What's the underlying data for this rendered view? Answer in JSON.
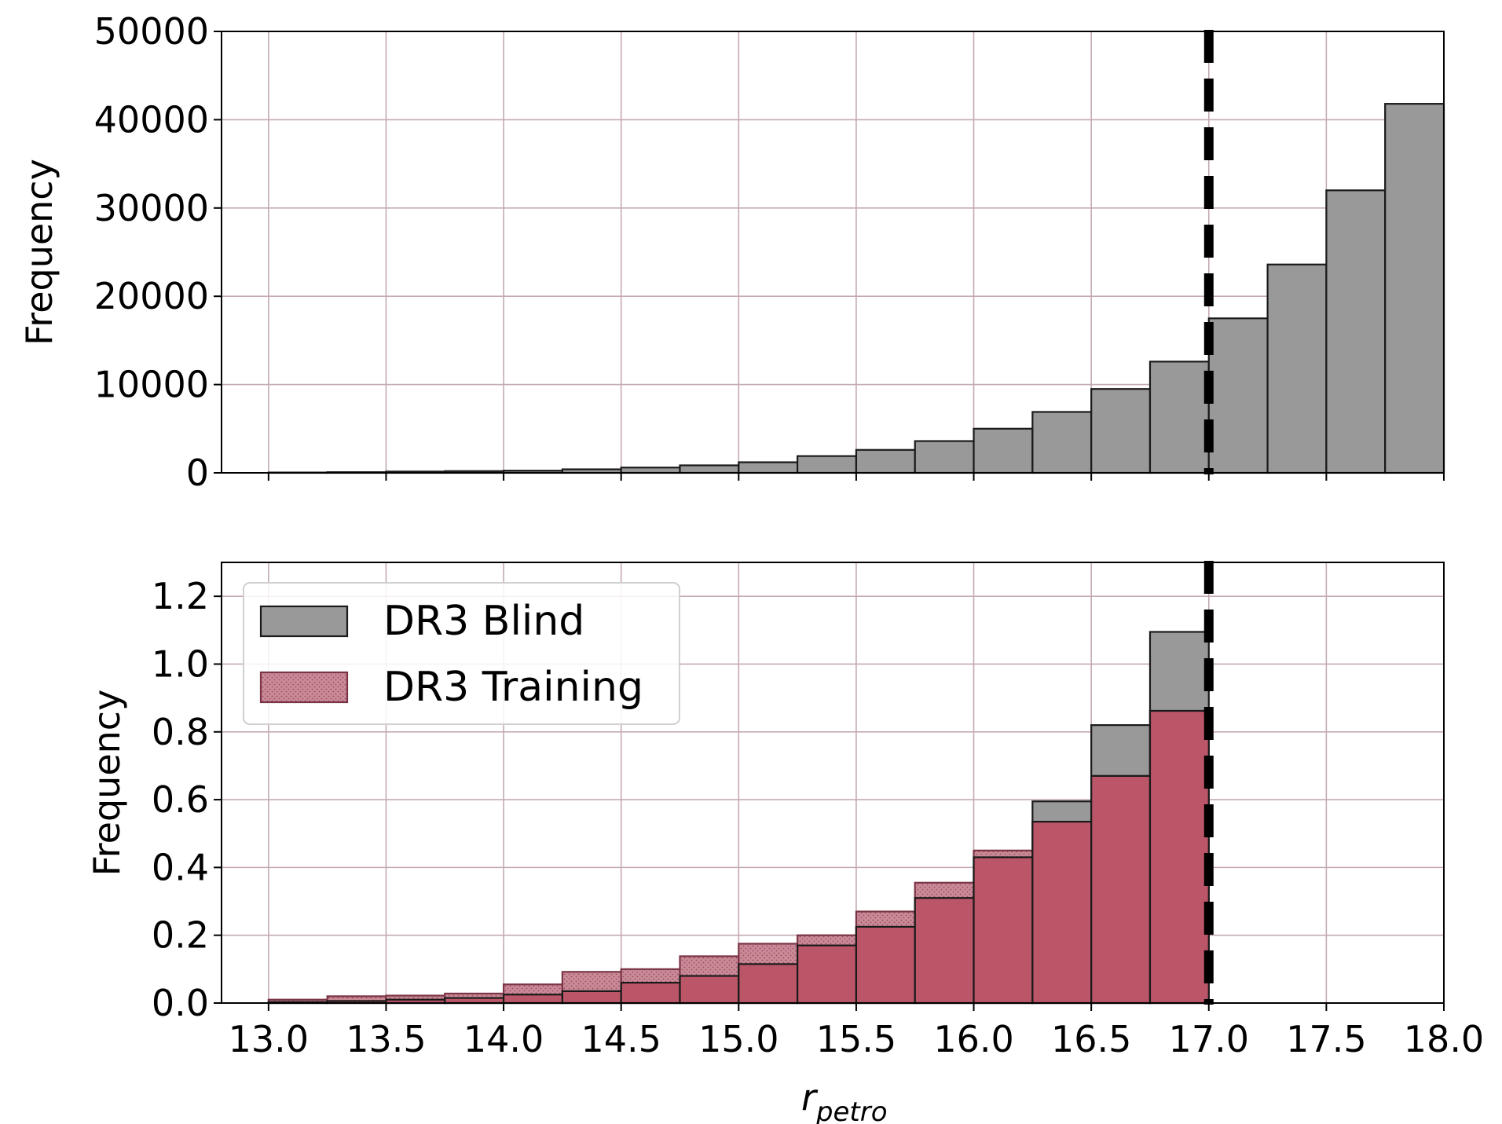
{
  "chart_data": [
    {
      "type": "bar",
      "panel": "top",
      "xlabel": "",
      "ylabel": "Frequency",
      "xlim": [
        12.8,
        18.0
      ],
      "ylim": [
        0,
        50000
      ],
      "xticks": [
        "13.0",
        "13.5",
        "14.0",
        "14.5",
        "15.0",
        "15.5",
        "16.0",
        "16.5",
        "17.0",
        "17.5",
        "18.0"
      ],
      "yticks": [
        "0",
        "10000",
        "20000",
        "30000",
        "40000",
        "50000"
      ],
      "show_x_tick_labels": false,
      "grid": true,
      "cut_line_x": 17.0,
      "bin_edges": [
        13.0,
        13.25,
        13.5,
        13.75,
        14.0,
        14.25,
        14.5,
        14.75,
        15.0,
        15.25,
        15.5,
        15.75,
        16.0,
        16.25,
        16.5,
        16.75,
        17.0,
        17.25,
        17.5,
        17.75,
        18.0
      ],
      "series": [
        {
          "name": "DR3 Blind",
          "color": "#999999",
          "values": [
            40,
            80,
            150,
            200,
            250,
            400,
            600,
            850,
            1200,
            1900,
            2600,
            3600,
            5000,
            6900,
            9500,
            12600,
            17500,
            23600,
            32000,
            41800
          ]
        }
      ]
    },
    {
      "type": "bar",
      "panel": "bottom",
      "xlabel": "r",
      "xlabel_subscript": "petro",
      "ylabel": "Frequency",
      "xlim": [
        12.8,
        18.0
      ],
      "ylim": [
        0,
        1.3
      ],
      "xticks": [
        "13.0",
        "13.5",
        "14.0",
        "14.5",
        "15.0",
        "15.5",
        "16.0",
        "16.5",
        "17.0",
        "17.5",
        "18.0"
      ],
      "yticks": [
        "0.0",
        "0.2",
        "0.4",
        "0.6",
        "0.8",
        "1.0",
        "1.2"
      ],
      "show_x_tick_labels": true,
      "grid": true,
      "cut_line_x": 17.0,
      "legend_position": "top-left",
      "bin_edges": [
        13.0,
        13.25,
        13.5,
        13.75,
        14.0,
        14.25,
        14.5,
        14.75,
        15.0,
        15.25,
        15.5,
        15.75,
        16.0,
        16.25,
        16.5,
        16.75,
        17.0
      ],
      "series": [
        {
          "name": "DR3 Blind",
          "color": "#999999",
          "values": [
            0.003,
            0.006,
            0.01,
            0.015,
            0.025,
            0.035,
            0.06,
            0.08,
            0.115,
            0.17,
            0.225,
            0.31,
            0.43,
            0.595,
            0.82,
            1.095
          ]
        },
        {
          "name": "DR3 Training",
          "color": "#b5536a",
          "values": [
            0.01,
            0.02,
            0.022,
            0.028,
            0.055,
            0.092,
            0.1,
            0.138,
            0.175,
            0.2,
            0.27,
            0.355,
            0.45,
            0.535,
            0.67,
            0.862
          ]
        }
      ]
    }
  ]
}
